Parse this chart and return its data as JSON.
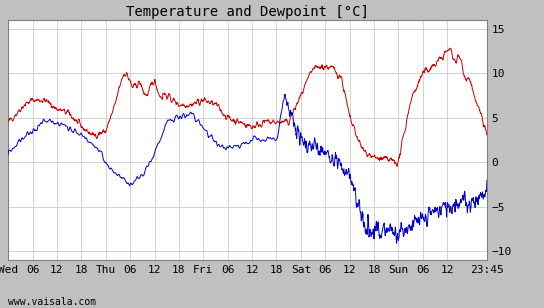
{
  "title": "Temperature and Dewpoint [°C]",
  "ylim": [
    -11,
    16
  ],
  "yticks": [
    -10,
    -5,
    0,
    5,
    10,
    15
  ],
  "background_color": "#c0c0c0",
  "plot_bg_color": "#ffffff",
  "grid_color": "#cccccc",
  "temp_color": "#cc0000",
  "dew_color": "#0000cc",
  "watermark": "www.vaisala.com",
  "xtick_labels": [
    "Wed",
    "06",
    "12",
    "18",
    "Thu",
    "06",
    "12",
    "18",
    "Fri",
    "06",
    "12",
    "18",
    "Sat",
    "06",
    "12",
    "18",
    "Sun",
    "06",
    "12",
    "23:45"
  ],
  "xtick_positions": [
    0,
    6,
    12,
    18,
    24,
    30,
    36,
    42,
    48,
    54,
    60,
    66,
    72,
    78,
    84,
    90,
    96,
    102,
    108,
    117.75
  ],
  "total_hours": 117.75,
  "title_fontsize": 10,
  "tick_fontsize": 8,
  "watermark_fontsize": 7
}
